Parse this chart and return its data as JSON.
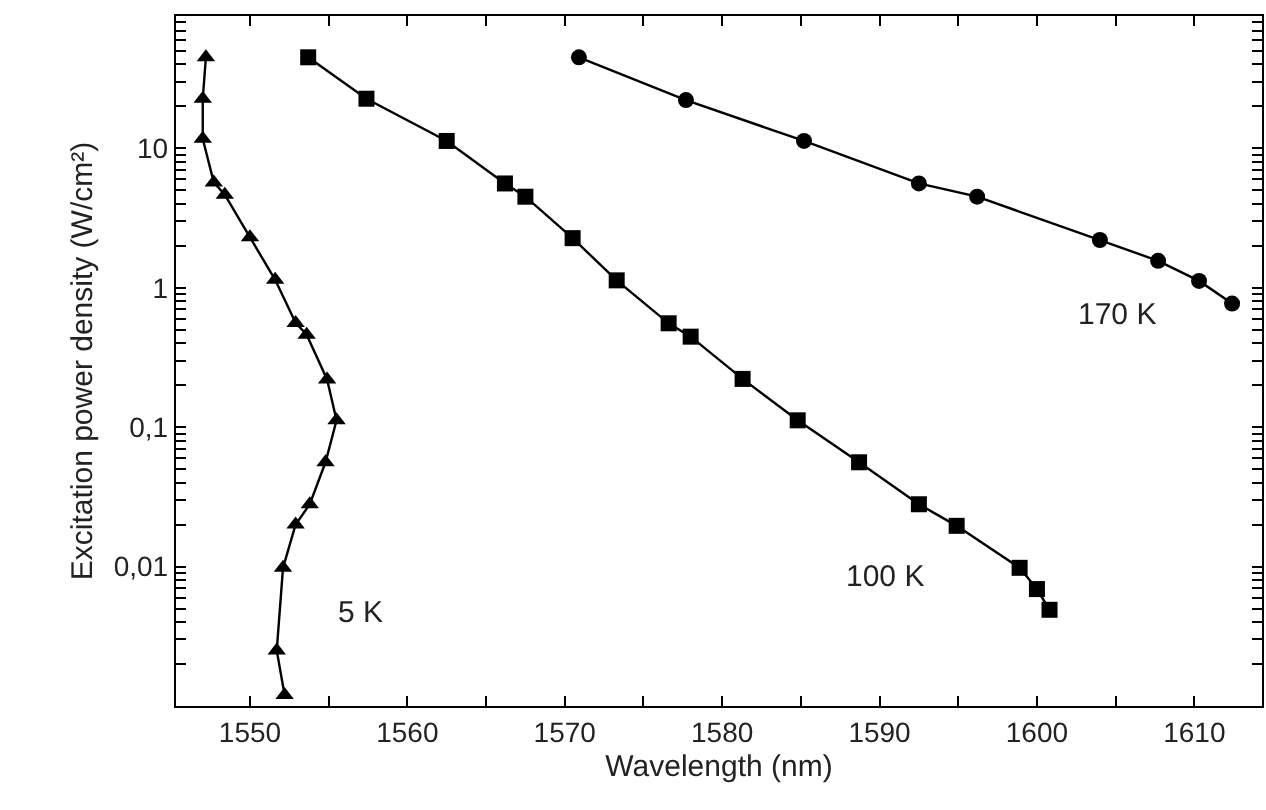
{
  "chart_data": {
    "type": "line",
    "xlabel": "Wavelength (nm)",
    "ylabel": "Excitation power density (W/cm²)",
    "log": "y",
    "legend": false,
    "xlim": [
      1545.3,
      1614.3
    ],
    "ylim": [
      0.001,
      89
    ],
    "xticks": [
      1550,
      {
        "value": 1555,
        "label": null
      },
      1560,
      {
        "value": 1565,
        "label": null
      },
      1570,
      {
        "value": 1575,
        "label": null
      },
      1580,
      {
        "value": 1585,
        "label": null
      },
      1590,
      {
        "value": 1595,
        "label": null
      },
      1600,
      {
        "value": 1605,
        "label": null
      },
      1610
    ],
    "yticks": [
      {
        "value": 0.002,
        "label": null
      },
      {
        "value": 0.003,
        "label": null
      },
      {
        "value": 0.004,
        "label": null
      },
      {
        "value": 0.005,
        "label": null
      },
      {
        "value": 0.006,
        "label": null
      },
      {
        "value": 0.007,
        "label": null
      },
      {
        "value": 0.008,
        "label": null
      },
      {
        "value": 0.009,
        "label": null
      },
      {
        "value": 0.01,
        "label": "0,01"
      },
      {
        "value": 0.02,
        "label": null
      },
      {
        "value": 0.03,
        "label": null
      },
      {
        "value": 0.04,
        "label": null
      },
      {
        "value": 0.05,
        "label": null
      },
      {
        "value": 0.06,
        "label": null
      },
      {
        "value": 0.07,
        "label": null
      },
      {
        "value": 0.08,
        "label": null
      },
      {
        "value": 0.09,
        "label": null
      },
      {
        "value": 0.1,
        "label": "0,1"
      },
      {
        "value": 0.2,
        "label": null
      },
      {
        "value": 0.3,
        "label": null
      },
      {
        "value": 0.4,
        "label": null
      },
      {
        "value": 0.5,
        "label": null
      },
      {
        "value": 0.6,
        "label": null
      },
      {
        "value": 0.7,
        "label": null
      },
      {
        "value": 0.8,
        "label": null
      },
      {
        "value": 0.9,
        "label": null
      },
      1,
      {
        "value": 2,
        "label": null
      },
      {
        "value": 3,
        "label": null
      },
      {
        "value": 4,
        "label": null
      },
      {
        "value": 5,
        "label": null
      },
      {
        "value": 6,
        "label": null
      },
      {
        "value": 7,
        "label": null
      },
      {
        "value": 8,
        "label": null
      },
      {
        "value": 9,
        "label": null
      },
      10,
      {
        "value": 20,
        "label": null
      },
      {
        "value": 30,
        "label": null
      },
      {
        "value": 40,
        "label": null
      },
      {
        "value": 50,
        "label": null
      },
      {
        "value": 60,
        "label": null
      },
      {
        "value": 70,
        "label": null
      },
      {
        "value": 80,
        "label": null
      }
    ],
    "series": [
      {
        "name": "5 K",
        "color": "#000000",
        "marker": "triangle",
        "x": [
          1547.2,
          1547.0,
          1547.0,
          1547.7,
          1548.4,
          1550.0,
          1551.6,
          1552.9,
          1553.6,
          1554.9,
          1555.5,
          1554.8,
          1553.8,
          1552.9,
          1552.1,
          1551.7,
          1552.2
        ],
        "values": [
          45,
          22.7,
          11.7,
          5.7,
          4.65,
          2.3,
          1.14,
          0.56,
          0.46,
          0.22,
          0.112,
          0.056,
          0.028,
          0.02,
          0.0098,
          0.0025,
          0.0012
        ]
      },
      {
        "name": "100 K",
        "color": "#000000",
        "marker": "square",
        "x": [
          1553.7,
          1557.4,
          1562.5,
          1566.2,
          1567.5,
          1570.5,
          1573.3,
          1576.6,
          1578.0,
          1581.3,
          1584.8,
          1588.7,
          1592.5,
          1594.9,
          1598.9,
          1600.0,
          1600.8
        ],
        "values": [
          45,
          22.7,
          11.3,
          5.6,
          4.5,
          2.27,
          1.13,
          0.556,
          0.446,
          0.222,
          0.112,
          0.056,
          0.028,
          0.0196,
          0.0098,
          0.0069,
          0.0049
        ]
      },
      {
        "name": "170 K",
        "color": "#000000",
        "marker": "circle",
        "x": [
          1570.9,
          1577.7,
          1585.2,
          1592.5,
          1596.2,
          1604.0,
          1607.7,
          1610.3,
          1612.4
        ],
        "values": [
          45,
          22.2,
          11.3,
          5.6,
          4.5,
          2.2,
          1.56,
          1.12,
          0.77
        ]
      }
    ]
  }
}
